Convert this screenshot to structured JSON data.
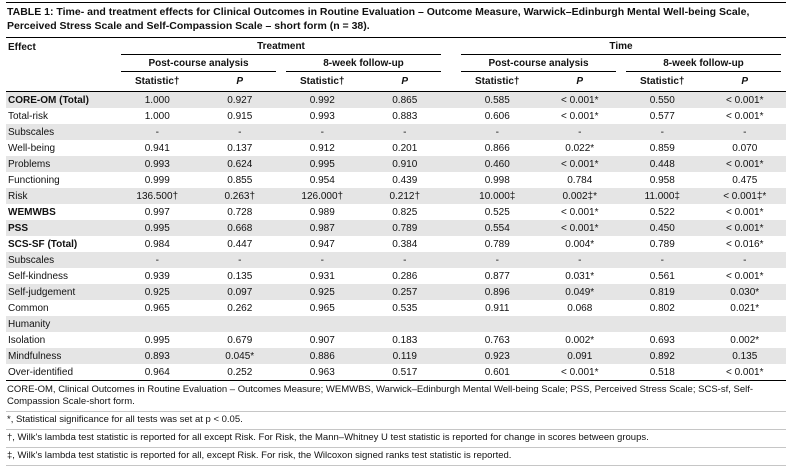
{
  "title": {
    "label": "TABLE 1:",
    "text": "Time- and treatment effects for Clinical Outcomes in Routine Evaluation – Outcome Measure, Warwick–Edinburgh Mental Well-being Scale, Perceived Stress Scale and Self-Compassion Scale – short form (n = 38)."
  },
  "table": {
    "effect_header": "Effect",
    "group_headers": [
      "Treatment",
      "Time"
    ],
    "sub_headers": [
      "Post-course analysis",
      "8-week follow-up",
      "Post-course analysis",
      "8-week follow-up"
    ],
    "stat_label": "Statistic†",
    "p_label": "P",
    "rows": [
      {
        "label": "CORE-OM (Total)",
        "bold": true,
        "values": [
          "1.000",
          "0.927",
          "0.992",
          "0.865",
          "0.585",
          "< 0.001*",
          "0.550",
          "< 0.001*"
        ]
      },
      {
        "label": "Total-risk",
        "bold": false,
        "values": [
          "1.000",
          "0.915",
          "0.993",
          "0.883",
          "0.606",
          "< 0.001*",
          "0.577",
          "< 0.001*"
        ]
      },
      {
        "label": "Subscales",
        "bold": false,
        "values": [
          "-",
          "-",
          "-",
          "-",
          "-",
          "-",
          "-",
          "-"
        ]
      },
      {
        "label": "Well-being",
        "bold": false,
        "values": [
          "0.941",
          "0.137",
          "0.912",
          "0.201",
          "0.866",
          "0.022*",
          "0.859",
          "0.070"
        ]
      },
      {
        "label": "Problems",
        "bold": false,
        "values": [
          "0.993",
          "0.624",
          "0.995",
          "0.910",
          "0.460",
          "< 0.001*",
          "0.448",
          "< 0.001*"
        ]
      },
      {
        "label": "Functioning",
        "bold": false,
        "values": [
          "0.999",
          "0.855",
          "0.954",
          "0.439",
          "0.998",
          "0.784",
          "0.958",
          "0.475"
        ]
      },
      {
        "label": "Risk",
        "bold": false,
        "values": [
          "136.500†",
          "0.263†",
          "126.000†",
          "0.212†",
          "10.000‡",
          "0.002‡*",
          "11.000‡",
          "< 0.001‡*"
        ]
      },
      {
        "label": "WEMWBS",
        "bold": true,
        "values": [
          "0.997",
          "0.728",
          "0.989",
          "0.825",
          "0.525",
          "< 0.001*",
          "0.522",
          "< 0.001*"
        ]
      },
      {
        "label": "PSS",
        "bold": true,
        "values": [
          "0.995",
          "0.668",
          "0.987",
          "0.789",
          "0.554",
          "< 0.001*",
          "0.450",
          "< 0.001*"
        ]
      },
      {
        "label": "SCS-SF (Total)",
        "bold": true,
        "values": [
          "0.984",
          "0.447",
          "0.947",
          "0.384",
          "0.789",
          "0.004*",
          "0.789",
          "< 0.016*"
        ]
      },
      {
        "label": "Subscales",
        "bold": false,
        "values": [
          "-",
          "-",
          "-",
          "-",
          "-",
          "-",
          "-",
          "-"
        ]
      },
      {
        "label": "Self-kindness",
        "bold": false,
        "values": [
          "0.939",
          "0.135",
          "0.931",
          "0.286",
          "0.877",
          "0.031*",
          "0.561",
          "< 0.001*"
        ]
      },
      {
        "label": "Self-judgement",
        "bold": false,
        "values": [
          "0.925",
          "0.097",
          "0.925",
          "0.257",
          "0.896",
          "0.049*",
          "0.819",
          "0.030*"
        ]
      },
      {
        "label": "Common",
        "bold": false,
        "values": [
          "0.965",
          "0.262",
          "0.965",
          "0.535",
          "0.911",
          "0.068",
          "0.802",
          "0.021*"
        ]
      },
      {
        "label": "Humanity",
        "bold": false,
        "values": [
          "",
          "",
          "",
          "",
          "",
          "",
          "",
          ""
        ]
      },
      {
        "label": "Isolation",
        "bold": false,
        "values": [
          "0.995",
          "0.679",
          "0.907",
          "0.183",
          "0.763",
          "0.002*",
          "0.693",
          "0.002*"
        ]
      },
      {
        "label": "Mindfulness",
        "bold": false,
        "values": [
          "0.893",
          "0.045*",
          "0.886",
          "0.119",
          "0.923",
          "0.091",
          "0.892",
          "0.135"
        ]
      },
      {
        "label": "Over-identified",
        "bold": false,
        "values": [
          "0.964",
          "0.252",
          "0.963",
          "0.517",
          "0.601",
          "< 0.001*",
          "0.518",
          "< 0.001*"
        ]
      }
    ]
  },
  "footnotes": [
    "CORE-OM, Clinical Outcomes in Routine Evaluation – Outcomes Measure; WEMWBS, Warwick–Edinburgh Mental Well-being Scale; PSS, Perceived Stress Scale; SCS-sf, Self-Compassion Scale-short form.",
    "*, Statistical significance for all tests was set at p < 0.05.",
    "†, Wilk's lambda test statistic is reported for all except Risk. For Risk, the Mann–Whitney U test statistic is reported for change in scores between groups.",
    "‡, Wilk's lambda test statistic is reported for all, except Risk. For risk, the Wilcoxon signed ranks test statistic is reported."
  ]
}
